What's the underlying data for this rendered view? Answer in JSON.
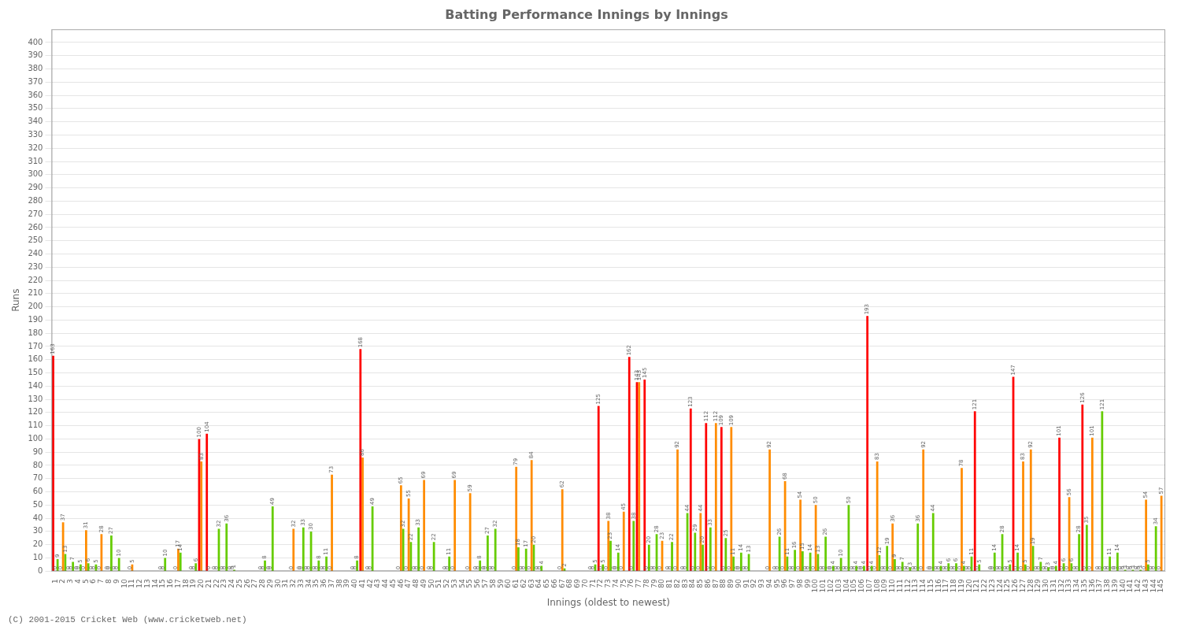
{
  "chart_data": {
    "type": "bar",
    "title": "Batting Performance Innings by Innings",
    "xlabel": "Innings (oldest to newest)",
    "ylabel": "Runs",
    "annotations": [
      "(C) 2001-2015 Cricket Web (www.cricketweb.net)"
    ],
    "categories": [
      "1",
      "2",
      "3",
      "4",
      "5",
      "6",
      "7",
      "8",
      "9",
      "10",
      "11",
      "12",
      "13",
      "14",
      "15",
      "16",
      "17",
      "18",
      "19",
      "20",
      "21",
      "22",
      "23",
      "24",
      "25",
      "26",
      "27",
      "28",
      "29",
      "30",
      "31",
      "32",
      "33",
      "34",
      "35",
      "36",
      "37",
      "38",
      "39",
      "40",
      "41",
      "42",
      "43",
      "44",
      "45",
      "46",
      "47",
      "48",
      "49",
      "50",
      "51",
      "52",
      "53",
      "54",
      "55",
      "56",
      "57",
      "58",
      "59",
      "60",
      "61",
      "62",
      "63",
      "64",
      "65",
      "66",
      "67",
      "68",
      "69",
      "70",
      "71",
      "72",
      "73",
      "74",
      "75",
      "76",
      "77",
      "78",
      "79",
      "80",
      "81",
      "82",
      "83",
      "84",
      "85",
      "86",
      "87",
      "88",
      "89",
      "90",
      "91",
      "92",
      "93",
      "94",
      "95",
      "96",
      "97",
      "98",
      "99",
      "100",
      "101",
      "102",
      "103",
      "104",
      "105",
      "106",
      "107",
      "108",
      "109",
      "110",
      "111",
      "112",
      "113",
      "114",
      "115",
      "116",
      "117",
      "118",
      "119",
      "120",
      "121",
      "122",
      "123",
      "124",
      "125",
      "126",
      "127",
      "128",
      "129",
      "130",
      "131",
      "132",
      "133",
      "134",
      "135",
      "136",
      "137",
      "138",
      "139",
      "140",
      "141",
      "142",
      "143",
      "144",
      "145"
    ],
    "series": [
      {
        "color": "#ff0000",
        "values": [
          163,
          0,
          0,
          0,
          0,
          0,
          0,
          0,
          0,
          0,
          0,
          0,
          0,
          0,
          0,
          0,
          0,
          0,
          0,
          100,
          104,
          0,
          0,
          0,
          0,
          0,
          0,
          0,
          0,
          0,
          0,
          0,
          0,
          0,
          0,
          0,
          0,
          0,
          0,
          0,
          168,
          0,
          0,
          0,
          0,
          0,
          0,
          0,
          0,
          0,
          0,
          0,
          0,
          0,
          0,
          0,
          0,
          0,
          0,
          0,
          0,
          0,
          0,
          0,
          0,
          0,
          0,
          0,
          0,
          0,
          0,
          125,
          0,
          0,
          0,
          162,
          143,
          145,
          0,
          0,
          0,
          0,
          0,
          123,
          0,
          112,
          0,
          109,
          0,
          0,
          0,
          0,
          0,
          0,
          0,
          0,
          0,
          0,
          0,
          0,
          0,
          0,
          0,
          0,
          0,
          0,
          193,
          0,
          0,
          0,
          0,
          0,
          0,
          0,
          0,
          0,
          0,
          0,
          0,
          0,
          121,
          0,
          0,
          0,
          0,
          147,
          0,
          0,
          0,
          0,
          0,
          101,
          0,
          0,
          126,
          0,
          0,
          0,
          0,
          0,
          0,
          0,
          0,
          0,
          0
        ],
        "value_labels": [
          "163",
          "0",
          "0",
          "0",
          "0",
          "0",
          "0",
          "0",
          "0",
          null,
          "0",
          null,
          null,
          null,
          "0",
          null,
          "0",
          null,
          "0",
          "100",
          "104",
          "0",
          "0",
          "0",
          null,
          null,
          null,
          "0",
          "0",
          null,
          null,
          "0",
          "0",
          "0",
          "0",
          "0",
          "0",
          null,
          null,
          "0",
          "168",
          "0",
          null,
          null,
          null,
          "0",
          "0",
          "0",
          "0",
          "0",
          null,
          "0",
          "0",
          null,
          "0",
          "0",
          "0",
          "0",
          null,
          null,
          "0",
          "0",
          "0",
          "0",
          null,
          null,
          "0",
          null,
          null,
          null,
          "0",
          "125",
          "0",
          "0",
          "0",
          "162",
          "143",
          "145",
          "0",
          "0",
          "0",
          "0",
          "0",
          "123",
          "0",
          "112",
          "0",
          "109",
          "0",
          "0",
          "0",
          null,
          null,
          "0",
          "0",
          "0",
          "0",
          "0",
          "0",
          "0",
          "0",
          "0",
          "0",
          "0",
          "0",
          "0",
          "193",
          "0",
          "0",
          "0",
          "0",
          "0",
          "0",
          "0",
          "0",
          "0",
          "0",
          "0",
          "0",
          "0",
          "121",
          null,
          "0",
          "0",
          "0",
          "147",
          "0",
          "0",
          "0",
          "0",
          "0",
          "101",
          "0",
          "0",
          "126",
          "0",
          "0",
          "0",
          "0",
          "0",
          "0",
          "0",
          "0",
          "0",
          "0"
        ]
      },
      {
        "color": "#ff8c00",
        "values": [
          0,
          37,
          0,
          0,
          31,
          0,
          28,
          0,
          0,
          0,
          5,
          0,
          0,
          0,
          0,
          0,
          17,
          0,
          0,
          83,
          0,
          0,
          0,
          0,
          0,
          0,
          0,
          0,
          0,
          0,
          0,
          32,
          0,
          0,
          0,
          0,
          73,
          0,
          0,
          0,
          86,
          0,
          0,
          0,
          0,
          65,
          55,
          0,
          69,
          0,
          0,
          0,
          69,
          0,
          59,
          0,
          0,
          0,
          0,
          0,
          79,
          0,
          84,
          0,
          0,
          0,
          62,
          0,
          0,
          0,
          0,
          0,
          38,
          0,
          45,
          0,
          143,
          0,
          0,
          23,
          0,
          92,
          0,
          0,
          44,
          0,
          112,
          0,
          109,
          0,
          0,
          0,
          0,
          92,
          0,
          68,
          0,
          54,
          0,
          50,
          0,
          0,
          0,
          0,
          0,
          0,
          0,
          83,
          0,
          36,
          0,
          0,
          0,
          92,
          0,
          0,
          0,
          0,
          78,
          0,
          0,
          0,
          0,
          0,
          0,
          0,
          83,
          92,
          0,
          0,
          0,
          0,
          56,
          0,
          0,
          101,
          0,
          0,
          0,
          0,
          0,
          0,
          54,
          0,
          57
        ],
        "value_labels": [
          "0",
          "37",
          "0",
          "0",
          "31",
          "0",
          "28",
          "0",
          "0",
          null,
          "5",
          null,
          null,
          null,
          "0",
          null,
          "17",
          null,
          "0",
          "83",
          "0",
          "0",
          "0",
          "0",
          null,
          null,
          null,
          "0",
          "0",
          null,
          null,
          "32",
          "0",
          "0",
          "0",
          "0",
          "73",
          null,
          null,
          "0",
          "86",
          "0",
          null,
          null,
          null,
          "65",
          "55",
          "0",
          "69",
          "0",
          null,
          "0",
          "69",
          null,
          "59",
          "0",
          "0",
          "0",
          null,
          null,
          "79",
          "0",
          "84",
          "0",
          null,
          null,
          "62",
          null,
          null,
          null,
          "0",
          "0",
          "38",
          "0",
          "45",
          "0",
          "143",
          "0",
          "0",
          "23",
          "0",
          "92",
          "0",
          "0",
          "44",
          "0",
          "112",
          "0",
          "109",
          "0",
          "0",
          null,
          null,
          "92",
          "0",
          "68",
          "0",
          "54",
          "0",
          "50",
          "0",
          "0",
          "0",
          "0",
          "0",
          "0",
          "0",
          "83",
          "0",
          "36",
          "0",
          "0",
          "0",
          "92",
          "0",
          "0",
          "0",
          "0",
          "78",
          "0",
          "0",
          null,
          "0",
          "0",
          "0",
          "0",
          "83",
          "92",
          "0",
          "0",
          "0",
          "0",
          "56",
          "0",
          "0",
          "101",
          "0",
          "0",
          "0",
          "0",
          "0",
          "0",
          "54",
          "0",
          "57"
        ]
      },
      {
        "color": "#66cc00",
        "values": [
          9,
          13,
          7,
          5,
          6,
          5,
          0,
          27,
          10,
          0,
          0,
          0,
          0,
          0,
          10,
          0,
          14,
          0,
          6,
          0,
          0,
          32,
          36,
          1,
          0,
          0,
          0,
          8,
          49,
          0,
          0,
          0,
          33,
          30,
          8,
          11,
          0,
          0,
          0,
          8,
          0,
          49,
          0,
          0,
          0,
          32,
          22,
          33,
          0,
          22,
          0,
          11,
          0,
          0,
          0,
          8,
          27,
          32,
          0,
          0,
          18,
          17,
          20,
          4,
          0,
          0,
          2,
          0,
          0,
          0,
          5,
          5,
          23,
          14,
          0,
          38,
          0,
          20,
          28,
          0,
          22,
          0,
          44,
          29,
          20,
          33,
          0,
          25,
          11,
          14,
          13,
          0,
          0,
          0,
          26,
          11,
          16,
          15,
          14,
          13,
          26,
          4,
          10,
          50,
          4,
          4,
          4,
          12,
          19,
          9,
          7,
          3,
          36,
          0,
          44,
          4,
          6,
          6,
          4,
          11,
          5,
          0,
          14,
          28,
          5,
          14,
          5,
          19,
          7,
          3,
          4,
          6,
          6,
          28,
          35,
          0,
          121,
          11,
          14,
          1,
          1,
          1,
          5,
          34,
          0
        ],
        "value_labels": [
          "9",
          "13",
          "7",
          "5",
          "6",
          "5",
          null,
          "27",
          "10",
          null,
          null,
          null,
          null,
          null,
          "10",
          null,
          "14",
          null,
          "6",
          null,
          null,
          "32",
          "36",
          "1",
          null,
          null,
          null,
          "8",
          "49",
          null,
          null,
          null,
          "33",
          "30",
          "8",
          "11",
          null,
          null,
          null,
          "8",
          null,
          "49",
          null,
          null,
          null,
          "32",
          "22",
          "33",
          null,
          "22",
          null,
          "11",
          null,
          null,
          null,
          "8",
          "27",
          "32",
          null,
          null,
          "18",
          "17",
          "20",
          "4",
          null,
          null,
          "2",
          null,
          null,
          null,
          "5",
          "5",
          "23",
          "14",
          null,
          "38",
          null,
          "20",
          "28",
          null,
          "22",
          null,
          "44",
          "29",
          "20",
          "33",
          null,
          "25",
          "11",
          "14",
          "13",
          null,
          null,
          null,
          "26",
          "11",
          "16",
          "15",
          "14",
          "13",
          "26",
          "4",
          "10",
          "50",
          "4",
          "4",
          "4",
          "12",
          "19",
          "9",
          "7",
          "3",
          "36",
          null,
          "44",
          "4",
          "6",
          "6",
          "4",
          "11",
          "5",
          null,
          "14",
          "28",
          "5",
          "14",
          "5",
          "19",
          "7",
          "3",
          "4",
          "6",
          "6",
          "28",
          "35",
          null,
          "121",
          "11",
          "14",
          "1",
          "1",
          "1",
          "5",
          "34",
          null
        ]
      }
    ],
    "ylim": [
      0,
      410
    ],
    "yticks": [
      0,
      10,
      20,
      30,
      40,
      50,
      60,
      70,
      80,
      90,
      100,
      110,
      120,
      130,
      140,
      150,
      160,
      170,
      180,
      190,
      200,
      210,
      220,
      230,
      240,
      250,
      260,
      270,
      280,
      290,
      300,
      310,
      320,
      330,
      340,
      350,
      360,
      370,
      380,
      390,
      400
    ],
    "grid": true,
    "data_labels": true
  }
}
